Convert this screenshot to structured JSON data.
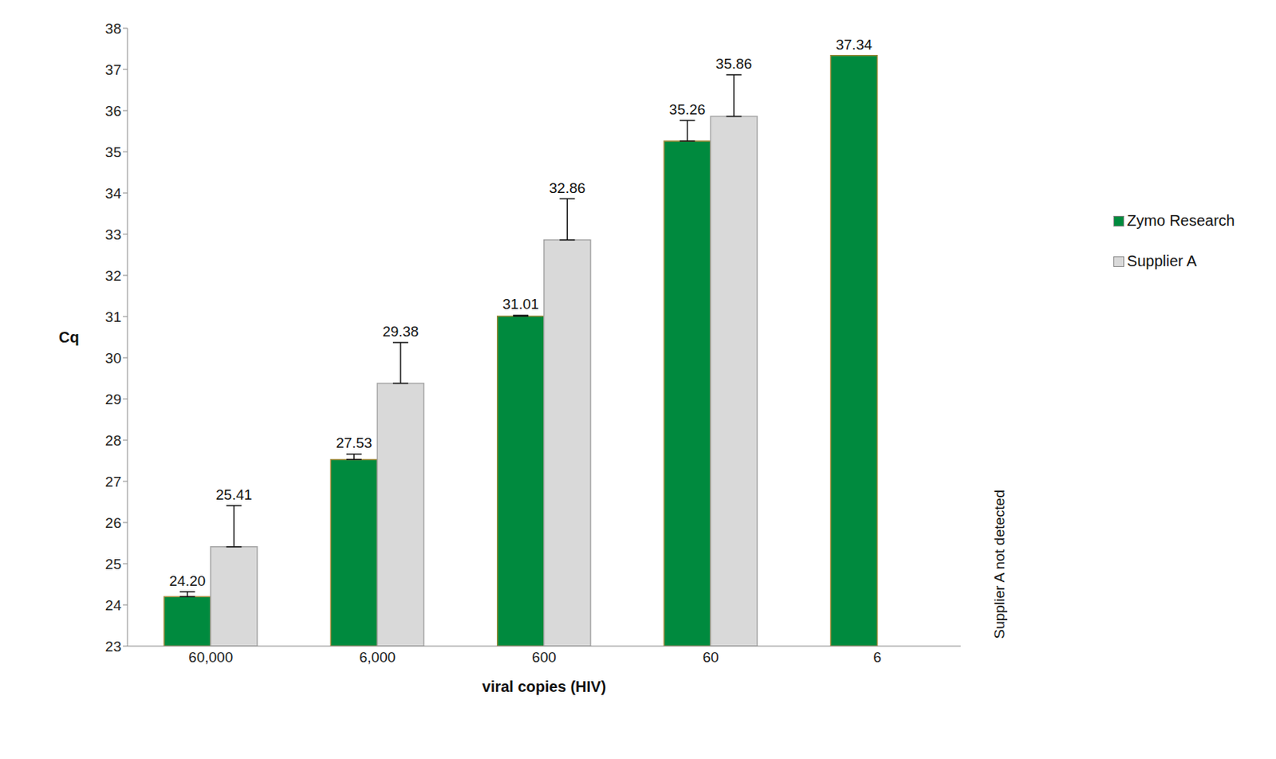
{
  "chart_data": {
    "type": "bar",
    "x_label": "viral copies (HIV)",
    "y_label": "Cq",
    "categories": [
      "60,000",
      "6,000",
      "600",
      "60",
      "6"
    ],
    "ylim": [
      23,
      38
    ],
    "yticks": [
      23,
      24,
      25,
      26,
      27,
      28,
      29,
      30,
      31,
      32,
      33,
      34,
      35,
      36,
      37,
      38
    ],
    "grid": false,
    "legend": "right",
    "data_labels": true,
    "series": [
      {
        "name": "Zymo Research",
        "color": "#008a3e",
        "values": [
          24.2,
          27.53,
          31.01,
          35.26,
          37.34
        ],
        "value_labels": [
          "24.20",
          "27.53",
          "31.01",
          "35.26",
          "37.34"
        ],
        "errors": [
          0.12,
          0.13,
          0.02,
          0.5,
          null
        ]
      },
      {
        "name": "Supplier A",
        "color": "#d9d9d9",
        "values": [
          25.41,
          29.38,
          32.86,
          35.86,
          null
        ],
        "value_labels": [
          "25.41",
          "29.38",
          "32.86",
          "35.86",
          null
        ],
        "errors": [
          1.0,
          0.99,
          1.0,
          1.01,
          null
        ]
      }
    ],
    "annotations": [
      {
        "text": "Supplier A not detected",
        "category": "6"
      }
    ]
  }
}
